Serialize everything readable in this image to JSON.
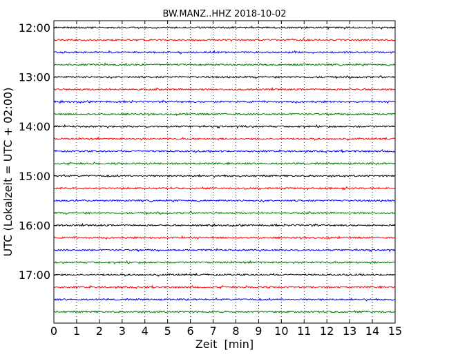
{
  "chart_data": {
    "type": "line",
    "title": "BW.MANZ..HHZ 2018-10-02",
    "xlabel": "Zeit  [min]",
    "ylabel": "UTC (Lokalzeit = UTC + 02:00)",
    "xlim": [
      0,
      15
    ],
    "x_ticks": [
      "0",
      "1",
      "2",
      "3",
      "4",
      "5",
      "6",
      "7",
      "8",
      "9",
      "10",
      "11",
      "12",
      "13",
      "14",
      "15"
    ],
    "y_ticks": [
      "12:00",
      "13:00",
      "14:00",
      "15:00",
      "16:00",
      "17:00"
    ],
    "y_tick_rows": [
      0,
      4,
      8,
      12,
      16,
      20
    ],
    "rows": 24,
    "grid": "vertical dotted at each minute",
    "trace_colors": [
      "#000000",
      "#ff0000",
      "#0000ff",
      "#008000"
    ],
    "trace_start_times": [
      "12:00",
      "12:15",
      "12:30",
      "12:45",
      "13:00",
      "13:15",
      "13:30",
      "13:45",
      "14:00",
      "14:15",
      "14:30",
      "14:45",
      "15:00",
      "15:15",
      "15:30",
      "15:45",
      "16:00",
      "16:15",
      "16:30",
      "16:45",
      "17:00",
      "17:15",
      "17:30",
      "17:45"
    ]
  }
}
